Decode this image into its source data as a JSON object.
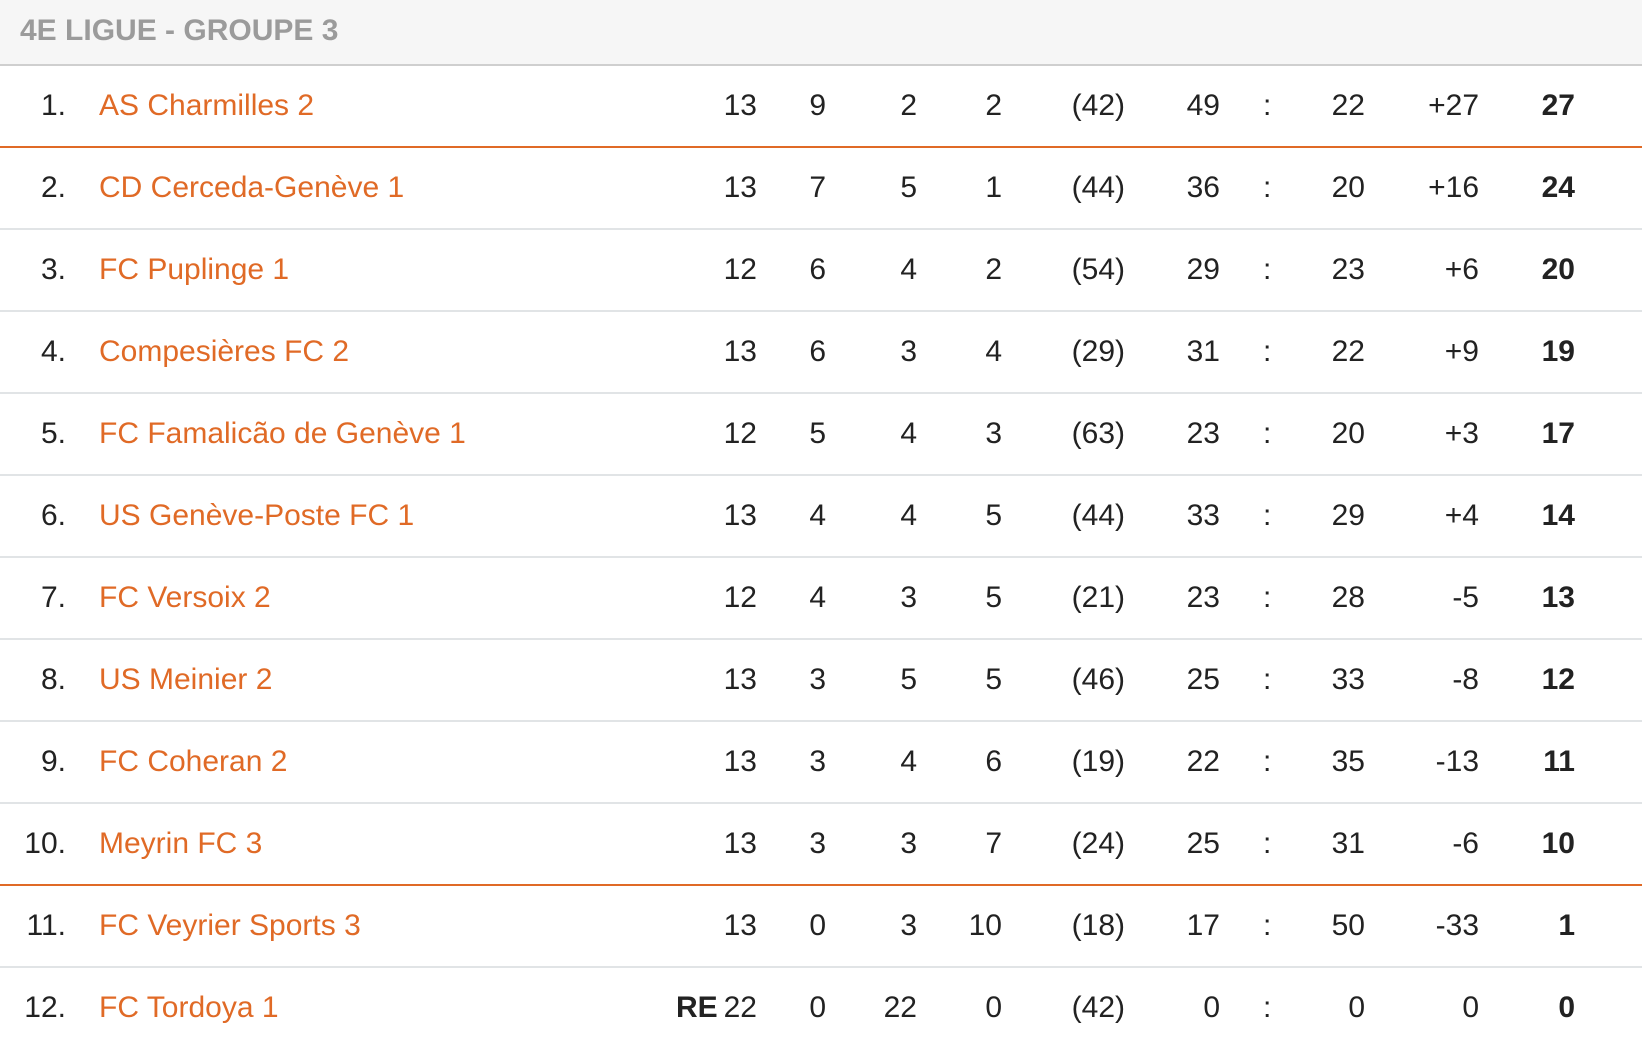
{
  "title": "4E LIGUE - GROUPE 3",
  "accent_color": "#e06a26",
  "rows": [
    {
      "rank": "1.",
      "team": "AS Charmilles 2",
      "flag": "",
      "played": "13",
      "w": "9",
      "d": "2",
      "l": "2",
      "fair": "(42)",
      "gf": "49",
      "ga": "22",
      "diff": "+27",
      "pts": "27"
    },
    {
      "rank": "2.",
      "team": "CD Cerceda-Genève 1",
      "flag": "",
      "played": "13",
      "w": "7",
      "d": "5",
      "l": "1",
      "fair": "(44)",
      "gf": "36",
      "ga": "20",
      "diff": "+16",
      "pts": "24"
    },
    {
      "rank": "3.",
      "team": "FC Puplinge 1",
      "flag": "",
      "played": "12",
      "w": "6",
      "d": "4",
      "l": "2",
      "fair": "(54)",
      "gf": "29",
      "ga": "23",
      "diff": "+6",
      "pts": "20"
    },
    {
      "rank": "4.",
      "team": "Compesières FC 2",
      "flag": "",
      "played": "13",
      "w": "6",
      "d": "3",
      "l": "4",
      "fair": "(29)",
      "gf": "31",
      "ga": "22",
      "diff": "+9",
      "pts": "19"
    },
    {
      "rank": "5.",
      "team": "FC Famalicão de Genève 1",
      "flag": "",
      "played": "12",
      "w": "5",
      "d": "4",
      "l": "3",
      "fair": "(63)",
      "gf": "23",
      "ga": "20",
      "diff": "+3",
      "pts": "17"
    },
    {
      "rank": "6.",
      "team": "US Genève-Poste FC 1",
      "flag": "",
      "played": "13",
      "w": "4",
      "d": "4",
      "l": "5",
      "fair": "(44)",
      "gf": "33",
      "ga": "29",
      "diff": "+4",
      "pts": "14"
    },
    {
      "rank": "7.",
      "team": "FC Versoix 2",
      "flag": "",
      "played": "12",
      "w": "4",
      "d": "3",
      "l": "5",
      "fair": "(21)",
      "gf": "23",
      "ga": "28",
      "diff": "-5",
      "pts": "13"
    },
    {
      "rank": "8.",
      "team": "US Meinier 2",
      "flag": "",
      "played": "13",
      "w": "3",
      "d": "5",
      "l": "5",
      "fair": "(46)",
      "gf": "25",
      "ga": "33",
      "diff": "-8",
      "pts": "12"
    },
    {
      "rank": "9.",
      "team": "FC Coheran 2",
      "flag": "",
      "played": "13",
      "w": "3",
      "d": "4",
      "l": "6",
      "fair": "(19)",
      "gf": "22",
      "ga": "35",
      "diff": "-13",
      "pts": "11"
    },
    {
      "rank": "10.",
      "team": "Meyrin FC 3",
      "flag": "",
      "played": "13",
      "w": "3",
      "d": "3",
      "l": "7",
      "fair": "(24)",
      "gf": "25",
      "ga": "31",
      "diff": "-6",
      "pts": "10"
    },
    {
      "rank": "11.",
      "team": "FC Veyrier Sports 3",
      "flag": "",
      "played": "13",
      "w": "0",
      "d": "3",
      "l": "10",
      "fair": "(18)",
      "gf": "17",
      "ga": "50",
      "diff": "-33",
      "pts": "1"
    },
    {
      "rank": "12.",
      "team": "FC Tordoya 1",
      "flag": "RE",
      "played": "22",
      "w": "0",
      "d": "22",
      "l": "0",
      "fair": "(42)",
      "gf": "0",
      "ga": "0",
      "diff": "0",
      "pts": "0"
    }
  ],
  "separator": ":"
}
